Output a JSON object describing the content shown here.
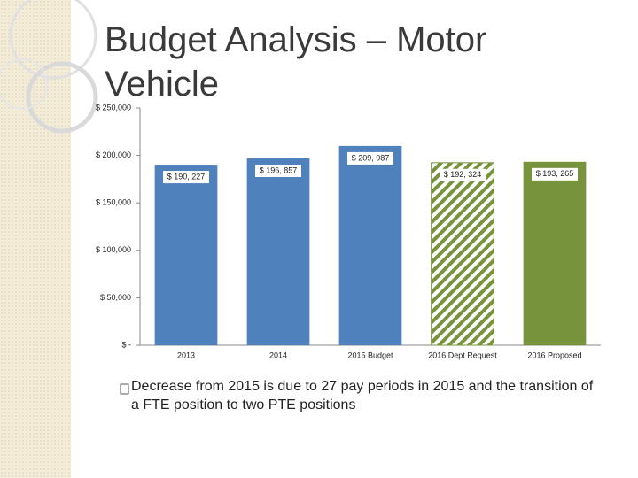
{
  "slide": {
    "title": "Budget Analysis – Motor Vehicle",
    "bullet": "Decrease from 2015 is due to 27 pay periods in 2015 and the transition of a FTE position to two PTE positions"
  },
  "chart_data": {
    "type": "bar",
    "categories": [
      "2013",
      "2014",
      "2015 Budget",
      "2016 Dept Request",
      "2016 Proposed"
    ],
    "values": [
      190227,
      196857,
      209987,
      192324,
      193265
    ],
    "value_labels": [
      "$ 190, 227",
      "$ 196, 857",
      "$ 209, 987",
      "$ 192, 324",
      "$ 193, 265"
    ],
    "colors": [
      "#4f81bd",
      "#4f81bd",
      "#4f81bd",
      "#77933c",
      "#77933c"
    ],
    "hatched": [
      false,
      false,
      false,
      true,
      false
    ],
    "ylim": [
      0,
      250000
    ],
    "yticks": [
      {
        "value": 0,
        "label": "$ -"
      },
      {
        "value": 50000,
        "label": "$ 50,000"
      },
      {
        "value": 100000,
        "label": "$ 100,000"
      },
      {
        "value": 150000,
        "label": "$ 150,000"
      },
      {
        "value": 200000,
        "label": "$ 200,000"
      },
      {
        "value": 250000,
        "label": "$ 250,000"
      }
    ],
    "grid": false
  }
}
